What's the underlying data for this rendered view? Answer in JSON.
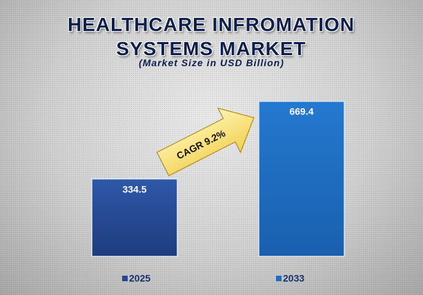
{
  "chart_data": {
    "type": "bar",
    "title": "HEALTHCARE INFROMATION SYSTEMS MARKET",
    "subtitle": "(Market Size in USD Billion)",
    "annotation": "CAGR 9.2%",
    "categories": [
      "2025",
      "2033"
    ],
    "values": [
      334.5,
      669.4
    ],
    "colors": [
      "#25478f",
      "#1e6cc0"
    ]
  }
}
